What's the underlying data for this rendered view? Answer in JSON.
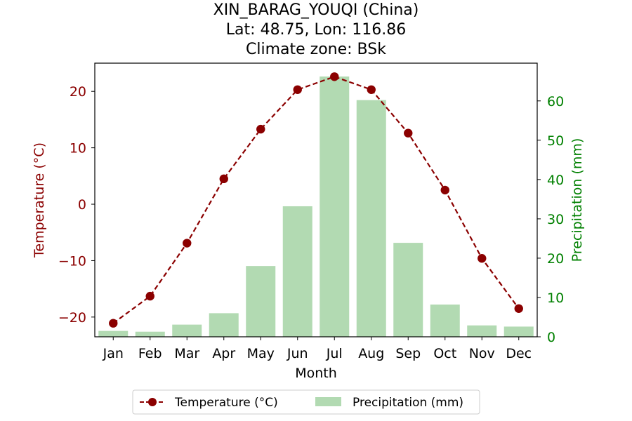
{
  "chart_data": {
    "type": "bar+line",
    "title_lines": [
      "XIN_BARAG_YOUQI (China)",
      "Lat: 48.75, Lon: 116.86",
      "Climate zone: BSk"
    ],
    "xlabel": "Month",
    "ylabel_left": "Temperature (°C)",
    "ylabel_right": "Precipitation (mm)",
    "categories": [
      "Jan",
      "Feb",
      "Mar",
      "Apr",
      "May",
      "Jun",
      "Jul",
      "Aug",
      "Sep",
      "Oct",
      "Nov",
      "Dec"
    ],
    "temperature": {
      "name": "Temperature (°C)",
      "values": [
        -21.1,
        -16.3,
        -6.9,
        4.5,
        13.3,
        20.3,
        22.6,
        20.3,
        12.6,
        2.5,
        -9.6,
        -18.5
      ],
      "color": "#8b0000"
    },
    "precipitation": {
      "name": "Precipitation (mm)",
      "values": [
        1.5,
        1.3,
        3.1,
        6.0,
        18.0,
        33.2,
        66.2,
        60.2,
        23.9,
        8.2,
        2.9,
        2.6
      ],
      "color": "#b2dab2"
    },
    "ylim_left": [
      -23.5,
      25.0
    ],
    "ylim_right": [
      0,
      69.6
    ],
    "yticks_left": [
      "20",
      "10",
      "0",
      "−10",
      "−20"
    ],
    "yticks_left_values": [
      20,
      10,
      0,
      -10,
      -20
    ],
    "yticks_right": [
      "0",
      "10",
      "20",
      "30",
      "40",
      "50",
      "60"
    ],
    "yticks_right_values": [
      0,
      10,
      20,
      30,
      40,
      50,
      60
    ],
    "left_axis_color": "#8b0000",
    "right_axis_color": "#008000",
    "grid": false,
    "legend_position": "bottom-center"
  }
}
